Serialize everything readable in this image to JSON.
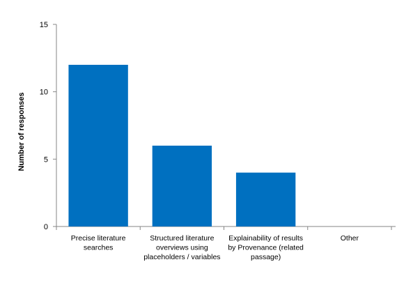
{
  "chart_data": {
    "type": "bar",
    "title": "",
    "xlabel": "",
    "ylabel": "Number of responses",
    "categories": [
      [
        "Precise literature",
        "searches"
      ],
      [
        "Structured literature",
        "overviews using",
        "placeholders / variables"
      ],
      [
        "Explainability of results",
        "by Provenance (related",
        "passage)"
      ],
      [
        "Other"
      ]
    ],
    "values": [
      12,
      6,
      4,
      0
    ],
    "ylim": [
      0,
      15
    ],
    "yticks": [
      0,
      5,
      10,
      15
    ],
    "grid": false,
    "legend": "none",
    "bar_color": "#0070C0",
    "axis_color": "#868686"
  }
}
